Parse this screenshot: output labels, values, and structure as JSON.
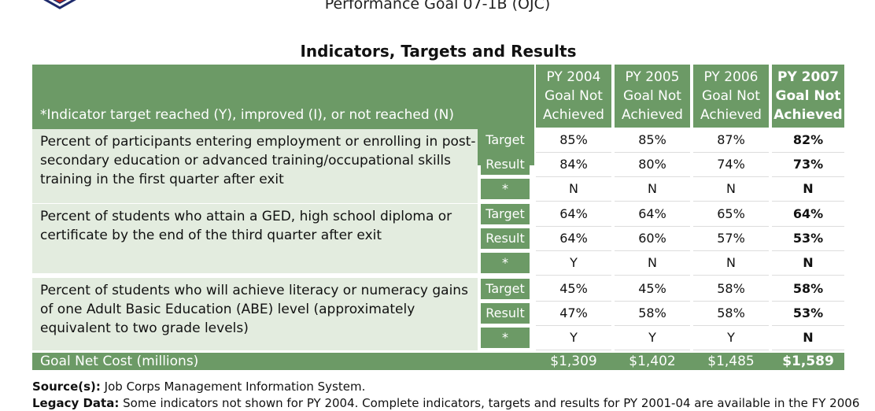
{
  "title": "Performance Goal 07-1B (OJC)",
  "table_caption": "Indicators, Targets and Results",
  "header": {
    "indicator_label": "*Indicator target reached (Y), improved (I), or not  reached (N)",
    "years": [
      {
        "line1": "PY 2004",
        "line2": "Goal Not",
        "line3": "Achieved"
      },
      {
        "line1": "PY 2005",
        "line2": "Goal Not",
        "line3": "Achieved"
      },
      {
        "line1": "PY 2006",
        "line2": "Goal Not",
        "line3": "Achieved"
      },
      {
        "line1": "PY 2007",
        "line2": "Goal Not",
        "line3": "Achieved"
      }
    ]
  },
  "groups": [
    {
      "indicator": "Percent of participants entering employment or enrolling in post-secondary education or advanced training/occupational skills training in the first quarter after exit",
      "rows": [
        {
          "label": "Target",
          "values": [
            "85%",
            "85%",
            "87%",
            "82%"
          ]
        },
        {
          "label": "Result",
          "values": [
            "84%",
            "80%",
            "74%",
            "73%"
          ]
        },
        {
          "label": "*",
          "values": [
            "N",
            "N",
            "N",
            "N"
          ]
        }
      ]
    },
    {
      "indicator": "Percent of students who attain a GED, high school diploma or certificate by the end of the third quarter after exit",
      "rows": [
        {
          "label": "Target",
          "values": [
            "64%",
            "64%",
            "65%",
            "64%"
          ]
        },
        {
          "label": "Result",
          "values": [
            "64%",
            "60%",
            "57%",
            "53%"
          ]
        },
        {
          "label": "*",
          "values": [
            "Y",
            "N",
            "N",
            "N"
          ]
        }
      ]
    },
    {
      "indicator": "Percent of students who will achieve literacy or numeracy gains of one Adult Basic Education (ABE) level (approximately equivalent to two grade levels)",
      "rows": [
        {
          "label": "Target",
          "values": [
            "45%",
            "45%",
            "58%",
            "58%"
          ]
        },
        {
          "label": "Result",
          "values": [
            "47%",
            "58%",
            "58%",
            "53%"
          ]
        },
        {
          "label": "*",
          "values": [
            "Y",
            "Y",
            "Y",
            "N"
          ]
        }
      ]
    }
  ],
  "cost": {
    "label": "Goal Net Cost (millions)",
    "values": [
      "$1,309",
      "$1,402",
      "$1,485",
      "$1,589"
    ]
  },
  "sources": {
    "source_label": "Source(s):",
    "source_text": "Job Corps Management Information System.",
    "legacy_label": "Legacy Data:",
    "legacy_text": "Some indicators not shown for PY 2004.  Complete indicators, targets and results for PY 2001-04 are available in the FY 2006"
  },
  "colors": {
    "header_green": "#6c9a66",
    "light_green": "#e3ecdf"
  }
}
